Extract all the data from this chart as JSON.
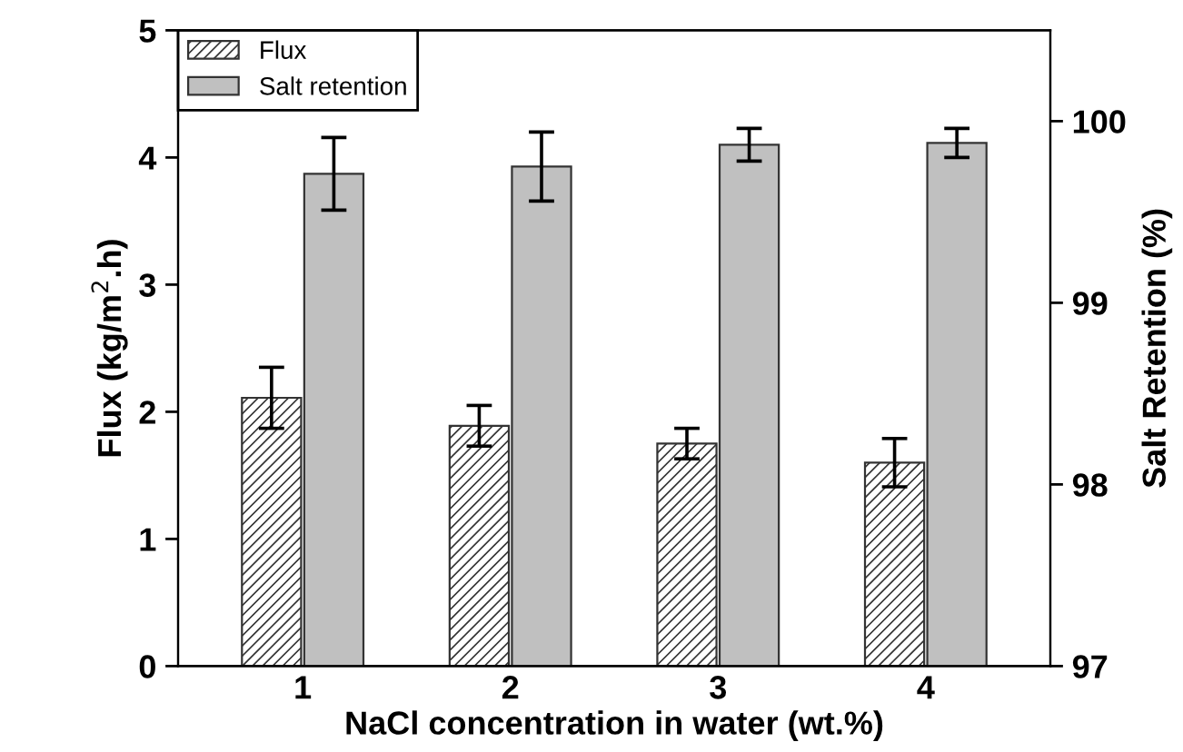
{
  "chart_data": {
    "type": "bar",
    "categories": [
      "1",
      "2",
      "3",
      "4"
    ],
    "xlabel": "NaCl concentration in water (wt.%)",
    "ylabel": "Flux (kg/m$^{2}$.h)",
    "y2label": "Salt Retention (%)",
    "series": [
      {
        "name": "Flux",
        "color": "#333333",
        "values": [
          2.11,
          1.89,
          1.75,
          1.6
        ],
        "errors": [
          0.24,
          0.16,
          0.12,
          0.19
        ]
      },
      {
        "name": "Salt retention",
        "color": "#c0c0c0",
        "axis": "y2",
        "values": [
          99.71,
          99.75,
          99.87,
          99.88
        ],
        "errors": [
          0.2,
          0.19,
          0.09,
          0.08
        ]
      }
    ],
    "ylim": [
      0,
      5
    ],
    "yticks": [
      0,
      1,
      2,
      3,
      4,
      5
    ],
    "y2lim": [
      97,
      100.5
    ],
    "y2ticks": [
      97,
      98,
      99,
      100
    ],
    "legend": "top left",
    "grid": false
  }
}
